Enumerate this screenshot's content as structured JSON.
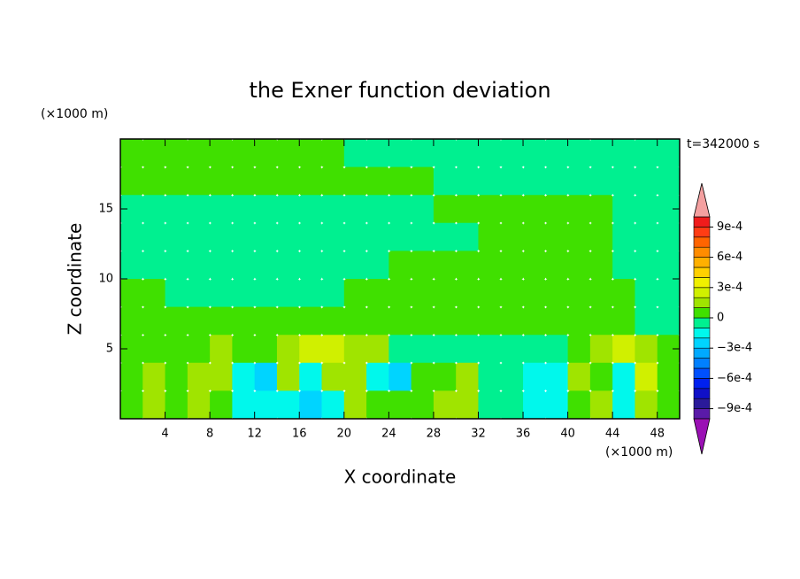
{
  "chart_data": {
    "type": "contour",
    "title": "the Exner function deviation",
    "time_label": "t=342000 s",
    "x_label": "X coordinate",
    "y_label": "Z coordinate",
    "x_unit": "(×1000 m)",
    "y_unit": "(×1000 m)",
    "xlim": [
      0,
      50
    ],
    "ylim": [
      0,
      20
    ],
    "xticks": [
      4,
      8,
      12,
      16,
      20,
      24,
      28,
      32,
      36,
      40,
      44,
      48
    ],
    "yticks": [
      5,
      10,
      15
    ],
    "x": [
      1,
      3,
      5,
      7,
      9,
      11,
      13,
      15,
      17,
      19,
      21,
      23,
      25,
      27,
      29,
      31,
      33,
      35,
      37,
      39,
      41,
      43,
      45,
      47,
      49
    ],
    "y": [
      19,
      17,
      15,
      13,
      11,
      9,
      7,
      5,
      3,
      1
    ],
    "z": [
      [
        5e-05,
        5e-05,
        5e-05,
        5e-05,
        5e-05,
        5e-05,
        5e-05,
        5e-05,
        5e-05,
        5e-05,
        -5e-05,
        -5e-05,
        -5e-05,
        -5e-05,
        -5e-05,
        -5e-05,
        -5e-05,
        -5e-05,
        -5e-05,
        -5e-05,
        -5e-05,
        -5e-05,
        -5e-05,
        -5e-05,
        -5e-05
      ],
      [
        5e-05,
        5e-05,
        5e-05,
        5e-05,
        5e-05,
        5e-05,
        5e-05,
        5e-05,
        5e-05,
        5e-05,
        5e-05,
        5e-05,
        5e-05,
        5e-05,
        -5e-05,
        -5e-05,
        -5e-05,
        -5e-05,
        -5e-05,
        -5e-05,
        -5e-05,
        -5e-05,
        -5e-05,
        -5e-05,
        -5e-05
      ],
      [
        -5e-05,
        -5e-05,
        -5e-05,
        -5e-05,
        -5e-05,
        -5e-05,
        -5e-05,
        -5e-05,
        -5e-05,
        -5e-05,
        -5e-05,
        -5e-05,
        -5e-05,
        -5e-05,
        5e-05,
        5e-05,
        5e-05,
        5e-05,
        5e-05,
        5e-05,
        5e-05,
        5e-05,
        -5e-05,
        -5e-05,
        -5e-05
      ],
      [
        -5e-05,
        -5e-05,
        -5e-05,
        -5e-05,
        -5e-05,
        -5e-05,
        -5e-05,
        -5e-05,
        -5e-05,
        -5e-05,
        -5e-05,
        -5e-05,
        -5e-05,
        -5e-05,
        -5e-05,
        -5e-05,
        5e-05,
        5e-05,
        5e-05,
        5e-05,
        5e-05,
        5e-05,
        -5e-05,
        -5e-05,
        -5e-05
      ],
      [
        -5e-05,
        -5e-05,
        -5e-05,
        -5e-05,
        -5e-05,
        -5e-05,
        -5e-05,
        -5e-05,
        -5e-05,
        -5e-05,
        -5e-05,
        -5e-05,
        5e-05,
        5e-05,
        5e-05,
        5e-05,
        5e-05,
        5e-05,
        5e-05,
        5e-05,
        5e-05,
        5e-05,
        -5e-05,
        -5e-05,
        -5e-05
      ],
      [
        5e-05,
        5e-05,
        -5e-05,
        -5e-05,
        -5e-05,
        -5e-05,
        -5e-05,
        -5e-05,
        -5e-05,
        -5e-05,
        5e-05,
        5e-05,
        5e-05,
        5e-05,
        5e-05,
        5e-05,
        5e-05,
        5e-05,
        5e-05,
        5e-05,
        5e-05,
        5e-05,
        5e-05,
        -5e-05,
        -5e-05
      ],
      [
        5e-05,
        5e-05,
        5e-05,
        5e-05,
        5e-05,
        5e-05,
        5e-05,
        5e-05,
        5e-05,
        5e-05,
        5e-05,
        5e-05,
        5e-05,
        5e-05,
        5e-05,
        5e-05,
        5e-05,
        5e-05,
        5e-05,
        5e-05,
        5e-05,
        5e-05,
        5e-05,
        -5e-05,
        -5e-05
      ],
      [
        5e-05,
        5e-05,
        5e-05,
        5e-05,
        0.00015,
        5e-05,
        5e-05,
        0.00015,
        0.00025,
        0.00025,
        0.00015,
        0.00015,
        -5e-05,
        -5e-05,
        -5e-05,
        -5e-05,
        -5e-05,
        -5e-05,
        -5e-05,
        -5e-05,
        5e-05,
        0.00015,
        0.00025,
        0.00015,
        5e-05
      ],
      [
        5e-05,
        0.00015,
        5e-05,
        0.00015,
        0.00015,
        -0.00015,
        -0.00025,
        0.00015,
        -0.00015,
        0.00015,
        0.00015,
        -0.00015,
        -0.00025,
        5e-05,
        5e-05,
        0.00015,
        -5e-05,
        -5e-05,
        -0.00015,
        -0.00015,
        0.00015,
        5e-05,
        -0.00015,
        0.00025,
        5e-05
      ],
      [
        5e-05,
        0.00015,
        5e-05,
        0.00015,
        5e-05,
        -0.00015,
        -0.00015,
        -0.00015,
        -0.00025,
        -0.00015,
        0.00015,
        5e-05,
        5e-05,
        5e-05,
        0.00015,
        0.00015,
        -5e-05,
        -5e-05,
        -0.00015,
        -0.00015,
        5e-05,
        0.00015,
        -0.00015,
        0.00015,
        5e-05
      ]
    ],
    "levels": [
      -0.001,
      -0.0009,
      -0.0008,
      -0.0007,
      -0.0006,
      -0.0005,
      -0.0004,
      -0.0003,
      -0.0002,
      -0.0001,
      0,
      0.0001,
      0.0002,
      0.0003,
      0.0004,
      0.0005,
      0.0006,
      0.0007,
      0.0008,
      0.0009,
      0.001
    ],
    "colors": [
      "#5a1aa8",
      "#2a1a9a",
      "#1010c8",
      "#0020f0",
      "#0050ff",
      "#0080ff",
      "#00aaff",
      "#00d4ff",
      "#00f8ec",
      "#00f090",
      "#40e000",
      "#a0e400",
      "#d0f000",
      "#f0f000",
      "#ffd000",
      "#ffb000",
      "#ff8c00",
      "#ff6400",
      "#ff3c14",
      "#f01c1c"
    ],
    "extend_colors": [
      "#9a10b4",
      "#f4a0a0"
    ],
    "colorbar_ticks": [
      {
        "value": 0.0009,
        "label": "9e-4"
      },
      {
        "value": 0.0006,
        "label": "6e-4"
      },
      {
        "value": 0.0003,
        "label": "3e-4"
      },
      0,
      {
        "value": -0.0003,
        "label": "−3e-4"
      },
      {
        "value": -0.0006,
        "label": "−6e-4"
      },
      {
        "value": -0.0009,
        "label": "−9e-4"
      }
    ]
  }
}
